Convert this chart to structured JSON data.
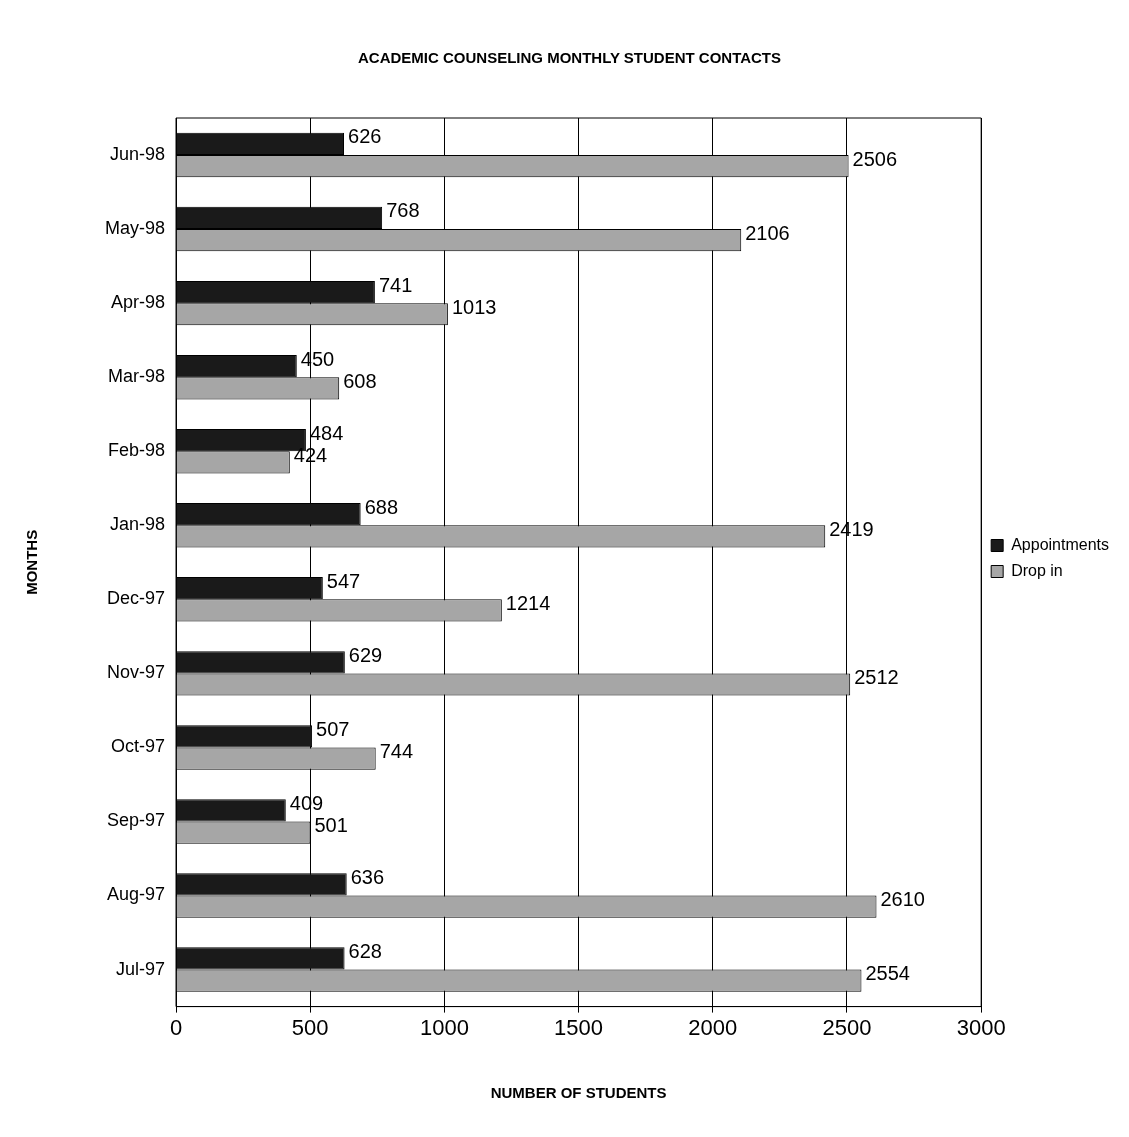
{
  "chart_data": {
    "type": "bar",
    "orientation": "horizontal",
    "title": "ACADEMIC COUNSELING MONTHLY STUDENT CONTACTS",
    "xlabel": "NUMBER OF STUDENTS",
    "ylabel": "MONTHS",
    "categories": [
      "Jun-98",
      "May-98",
      "Apr-98",
      "Mar-98",
      "Feb-98",
      "Jan-98",
      "Dec-97",
      "Nov-97",
      "Oct-97",
      "Sep-97",
      "Aug-97",
      "Jul-97"
    ],
    "series": [
      {
        "name": "Appointments",
        "color": "#1a1a1a",
        "values": [
          626,
          768,
          741,
          450,
          484,
          688,
          547,
          629,
          507,
          409,
          636,
          628
        ]
      },
      {
        "name": "Drop in",
        "color": "#a6a6a6",
        "values": [
          2506,
          2106,
          1013,
          608,
          424,
          2419,
          1214,
          2512,
          744,
          501,
          2610,
          2554
        ]
      }
    ],
    "xlim": [
      0,
      3000
    ],
    "xticks": [
      0,
      500,
      1000,
      1500,
      2000,
      2500,
      3000
    ],
    "grid": "x",
    "legend": "right",
    "data_labels": true
  }
}
